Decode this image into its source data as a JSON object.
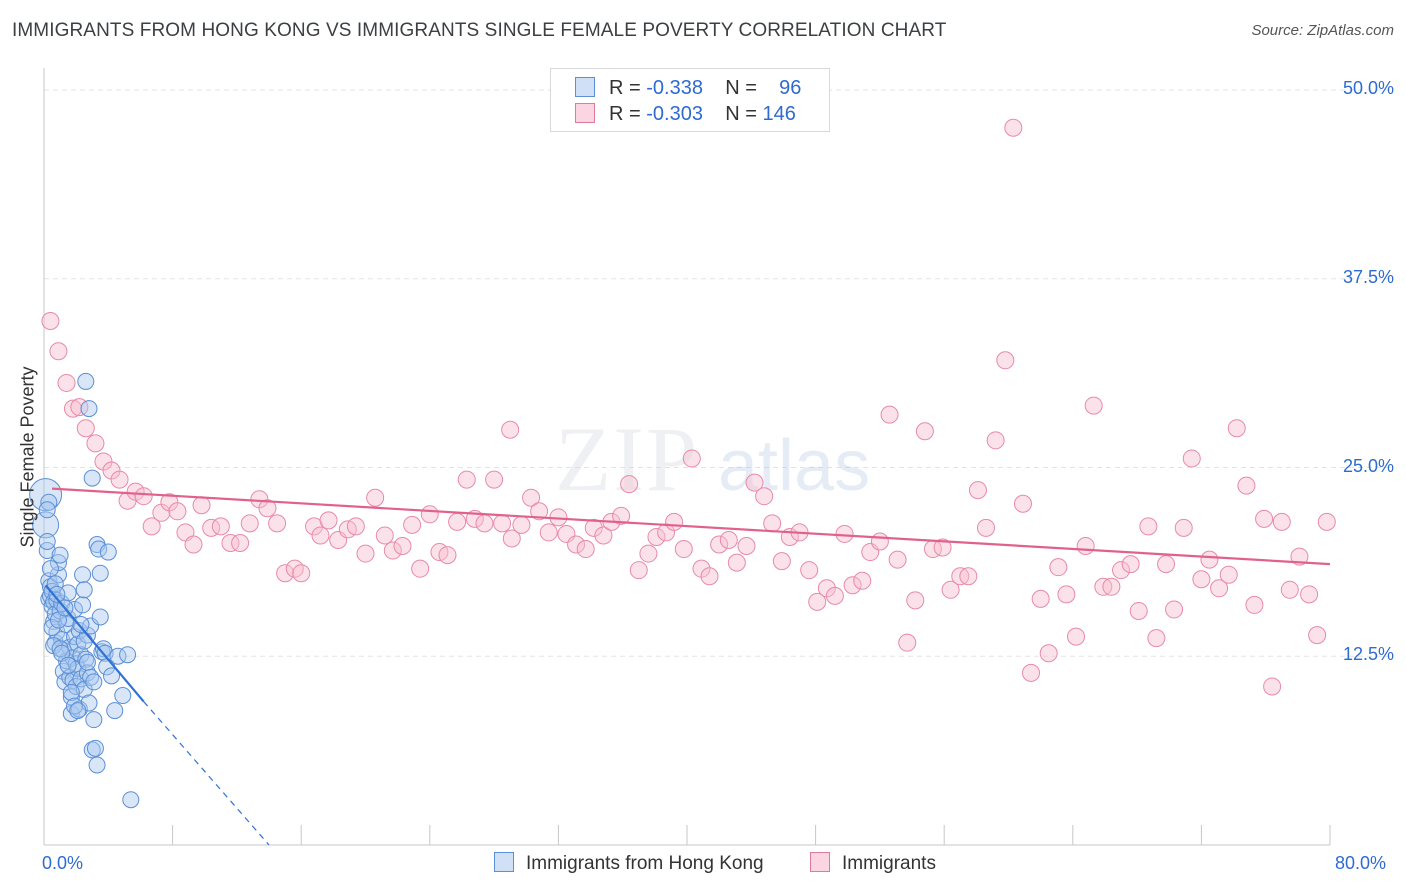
{
  "title": "IMMIGRANTS FROM HONG KONG VS IMMIGRANTS SINGLE FEMALE POVERTY CORRELATION CHART",
  "source": "Source: ZipAtlas.com",
  "watermark": {
    "zip": "ZIP",
    "atlas": "atlas"
  },
  "legend": {
    "rows": [
      {
        "r_label": "R =",
        "r_value": "-0.338",
        "n_label": "N =",
        "n_value": "96",
        "color": "#a8c8f0",
        "border": "#5b8fd6"
      },
      {
        "r_label": "R =",
        "r_value": "-0.303",
        "n_label": "N =",
        "n_value": "146",
        "color": "#f7bfd0",
        "border": "#e07a9a"
      }
    ]
  },
  "bottom_legend": [
    {
      "label": "Immigrants from Hong Kong",
      "color": "#a8c8f0",
      "border": "#5b8fd6"
    },
    {
      "label": "Immigrants",
      "color": "#f7bfd0",
      "border": "#e07a9a"
    }
  ],
  "chart_data": {
    "type": "scatter",
    "title": "IMMIGRANTS FROM HONG KONG VS IMMIGRANTS SINGLE FEMALE POVERTY CORRELATION CHART",
    "xlabel": "",
    "ylabel": "Single Female Poverty",
    "xlim": [
      0,
      80
    ],
    "ylim": [
      0,
      50
    ],
    "x_tick_labels": [
      "0.0%",
      "80.0%"
    ],
    "y_ticks": [
      12.5,
      25.0,
      37.5,
      50.0
    ],
    "y_tick_labels": [
      "12.5%",
      "25.0%",
      "37.5%",
      "50.0%"
    ],
    "grid": "horizontal dashed",
    "colors": {
      "hong_kong": "#4a87d8",
      "immigrants": "#e8739a"
    },
    "series": [
      {
        "name": "Immigrants from Hong Kong",
        "color": "#a8c8f0",
        "trend": {
          "x0": 0.1,
          "y0": 17.2,
          "x1": 6.2,
          "y1": 9.5,
          "dashed_to_x": 14,
          "dashed_to_y": 0
        },
        "points": [
          [
            0.1,
            23.2
          ],
          [
            0.1,
            21.2
          ],
          [
            0.2,
            19.5
          ],
          [
            0.3,
            17.5
          ],
          [
            0.3,
            16.3
          ],
          [
            0.4,
            16.5
          ],
          [
            0.4,
            17.1
          ],
          [
            0.5,
            16.8
          ],
          [
            0.5,
            15.8
          ],
          [
            0.6,
            16.1
          ],
          [
            0.6,
            14.8
          ],
          [
            0.7,
            13.4
          ],
          [
            0.7,
            15.3
          ],
          [
            0.8,
            14.1
          ],
          [
            0.8,
            16.2
          ],
          [
            0.9,
            17.9
          ],
          [
            0.9,
            18.7
          ],
          [
            1.0,
            19.2
          ],
          [
            1.0,
            15.5
          ],
          [
            1.1,
            16.0
          ],
          [
            1.1,
            13.6
          ],
          [
            1.2,
            12.9
          ],
          [
            1.2,
            11.5
          ],
          [
            1.3,
            10.8
          ],
          [
            1.4,
            12.2
          ],
          [
            1.4,
            14.6
          ],
          [
            1.5,
            15.0
          ],
          [
            1.5,
            16.7
          ],
          [
            1.6,
            13.1
          ],
          [
            1.6,
            11.1
          ],
          [
            1.7,
            9.8
          ],
          [
            1.7,
            8.7
          ],
          [
            1.8,
            12.4
          ],
          [
            1.8,
            10.9
          ],
          [
            1.9,
            13.8
          ],
          [
            1.9,
            15.6
          ],
          [
            2.0,
            12.0
          ],
          [
            2.0,
            10.5
          ],
          [
            2.1,
            11.7
          ],
          [
            2.1,
            13.3
          ],
          [
            2.2,
            9.0
          ],
          [
            2.2,
            14.2
          ],
          [
            2.3,
            12.6
          ],
          [
            2.3,
            11.0
          ],
          [
            2.4,
            17.9
          ],
          [
            2.4,
            15.9
          ],
          [
            2.5,
            16.9
          ],
          [
            2.5,
            10.3
          ],
          [
            2.6,
            30.7
          ],
          [
            2.6,
            12.3
          ],
          [
            2.7,
            11.4
          ],
          [
            2.7,
            13.9
          ],
          [
            2.8,
            28.9
          ],
          [
            2.8,
            9.4
          ],
          [
            2.9,
            11.1
          ],
          [
            2.9,
            14.5
          ],
          [
            3.0,
            24.3
          ],
          [
            3.0,
            6.3
          ],
          [
            3.1,
            10.8
          ],
          [
            3.1,
            8.3
          ],
          [
            3.2,
            6.4
          ],
          [
            3.3,
            5.3
          ],
          [
            3.3,
            19.9
          ],
          [
            3.4,
            19.6
          ],
          [
            3.5,
            18.0
          ],
          [
            3.5,
            15.1
          ],
          [
            3.6,
            12.8
          ],
          [
            3.7,
            13.0
          ],
          [
            3.8,
            12.7
          ],
          [
            3.9,
            11.8
          ],
          [
            4.0,
            19.4
          ],
          [
            4.2,
            11.2
          ],
          [
            4.4,
            8.9
          ],
          [
            4.6,
            12.5
          ],
          [
            4.9,
            9.9
          ],
          [
            5.2,
            12.6
          ],
          [
            5.4,
            3.0
          ],
          [
            0.3,
            22.7
          ],
          [
            0.2,
            20.1
          ],
          [
            0.4,
            18.3
          ],
          [
            0.5,
            14.4
          ],
          [
            0.6,
            13.2
          ],
          [
            0.7,
            17.3
          ],
          [
            0.8,
            16.6
          ],
          [
            0.9,
            14.9
          ],
          [
            1.0,
            13.0
          ],
          [
            1.1,
            12.7
          ],
          [
            1.3,
            15.7
          ],
          [
            1.5,
            11.9
          ],
          [
            1.7,
            10.1
          ],
          [
            1.9,
            9.2
          ],
          [
            2.1,
            8.9
          ],
          [
            2.3,
            14.6
          ],
          [
            2.5,
            13.5
          ],
          [
            2.7,
            12.1
          ],
          [
            0.2,
            22.2
          ]
        ],
        "sizes": [
          22,
          18
        ]
      },
      {
        "name": "Immigrants",
        "color": "#f7bfd0",
        "trend": {
          "x0": 0.5,
          "y0": 23.6,
          "x1": 80,
          "y1": 18.6
        },
        "points": [
          [
            0.4,
            34.7
          ],
          [
            0.9,
            32.7
          ],
          [
            1.4,
            30.6
          ],
          [
            1.8,
            28.9
          ],
          [
            2.2,
            29.0
          ],
          [
            2.6,
            27.6
          ],
          [
            3.2,
            26.6
          ],
          [
            3.7,
            25.4
          ],
          [
            4.2,
            24.8
          ],
          [
            4.7,
            24.2
          ],
          [
            5.2,
            22.8
          ],
          [
            5.7,
            23.4
          ],
          [
            6.2,
            23.1
          ],
          [
            6.7,
            21.1
          ],
          [
            7.3,
            22.0
          ],
          [
            7.8,
            22.7
          ],
          [
            8.3,
            22.1
          ],
          [
            8.8,
            20.7
          ],
          [
            9.3,
            19.9
          ],
          [
            9.8,
            22.5
          ],
          [
            10.4,
            21.0
          ],
          [
            11.0,
            21.1
          ],
          [
            11.6,
            20.0
          ],
          [
            12.2,
            20.0
          ],
          [
            12.8,
            21.3
          ],
          [
            13.4,
            22.9
          ],
          [
            13.9,
            22.3
          ],
          [
            14.5,
            21.3
          ],
          [
            15.0,
            18.0
          ],
          [
            15.6,
            18.3
          ],
          [
            16.0,
            18.0
          ],
          [
            16.8,
            21.1
          ],
          [
            17.2,
            20.5
          ],
          [
            17.7,
            21.5
          ],
          [
            18.3,
            20.2
          ],
          [
            18.9,
            20.9
          ],
          [
            19.4,
            21.1
          ],
          [
            20.0,
            19.3
          ],
          [
            20.6,
            23.0
          ],
          [
            21.2,
            20.5
          ],
          [
            21.7,
            19.5
          ],
          [
            22.3,
            19.8
          ],
          [
            22.9,
            21.2
          ],
          [
            23.4,
            18.3
          ],
          [
            24.0,
            21.9
          ],
          [
            24.6,
            19.4
          ],
          [
            25.1,
            19.2
          ],
          [
            25.7,
            21.4
          ],
          [
            26.3,
            24.2
          ],
          [
            26.8,
            21.6
          ],
          [
            27.4,
            21.3
          ],
          [
            28.0,
            24.2
          ],
          [
            28.5,
            21.3
          ],
          [
            29.0,
            27.5
          ],
          [
            29.1,
            20.3
          ],
          [
            29.7,
            21.2
          ],
          [
            30.3,
            23.0
          ],
          [
            30.8,
            22.1
          ],
          [
            31.4,
            20.7
          ],
          [
            32.0,
            21.7
          ],
          [
            32.5,
            20.6
          ],
          [
            33.1,
            19.9
          ],
          [
            33.7,
            19.6
          ],
          [
            34.2,
            21.0
          ],
          [
            34.8,
            20.5
          ],
          [
            35.3,
            21.4
          ],
          [
            35.9,
            21.8
          ],
          [
            36.4,
            23.9
          ],
          [
            37.0,
            18.2
          ],
          [
            37.6,
            19.3
          ],
          [
            38.1,
            20.4
          ],
          [
            38.7,
            20.7
          ],
          [
            39.2,
            21.4
          ],
          [
            39.8,
            19.6
          ],
          [
            40.3,
            25.6
          ],
          [
            40.9,
            18.3
          ],
          [
            41.4,
            17.8
          ],
          [
            42.0,
            19.9
          ],
          [
            42.6,
            20.2
          ],
          [
            43.1,
            18.7
          ],
          [
            43.7,
            19.8
          ],
          [
            44.2,
            24.0
          ],
          [
            44.8,
            23.1
          ],
          [
            45.3,
            21.3
          ],
          [
            45.9,
            18.8
          ],
          [
            46.4,
            20.4
          ],
          [
            47.0,
            20.7
          ],
          [
            47.6,
            18.2
          ],
          [
            48.1,
            16.1
          ],
          [
            48.7,
            17.0
          ],
          [
            49.2,
            16.5
          ],
          [
            49.8,
            20.6
          ],
          [
            50.3,
            17.2
          ],
          [
            50.9,
            17.5
          ],
          [
            51.4,
            19.4
          ],
          [
            52.0,
            20.1
          ],
          [
            52.6,
            28.5
          ],
          [
            53.1,
            18.9
          ],
          [
            53.7,
            13.4
          ],
          [
            54.2,
            16.2
          ],
          [
            54.8,
            27.4
          ],
          [
            55.3,
            19.6
          ],
          [
            55.9,
            19.7
          ],
          [
            56.4,
            16.9
          ],
          [
            57.0,
            17.8
          ],
          [
            57.5,
            17.8
          ],
          [
            58.1,
            23.5
          ],
          [
            58.6,
            21.0
          ],
          [
            59.2,
            26.8
          ],
          [
            59.8,
            32.1
          ],
          [
            60.3,
            47.5
          ],
          [
            60.9,
            22.6
          ],
          [
            61.4,
            11.4
          ],
          [
            62.0,
            16.3
          ],
          [
            62.5,
            12.7
          ],
          [
            63.1,
            18.4
          ],
          [
            63.6,
            16.6
          ],
          [
            64.2,
            13.8
          ],
          [
            64.8,
            19.8
          ],
          [
            65.3,
            29.1
          ],
          [
            65.9,
            17.1
          ],
          [
            66.4,
            17.1
          ],
          [
            67.0,
            18.2
          ],
          [
            67.6,
            18.6
          ],
          [
            68.1,
            15.5
          ],
          [
            68.7,
            21.1
          ],
          [
            69.2,
            13.7
          ],
          [
            69.8,
            18.6
          ],
          [
            70.3,
            15.6
          ],
          [
            70.9,
            21.0
          ],
          [
            71.4,
            25.6
          ],
          [
            72.0,
            17.6
          ],
          [
            72.5,
            18.9
          ],
          [
            73.1,
            17.0
          ],
          [
            73.7,
            17.9
          ],
          [
            74.2,
            27.6
          ],
          [
            74.8,
            23.8
          ],
          [
            75.3,
            15.9
          ],
          [
            75.9,
            21.6
          ],
          [
            76.4,
            10.5
          ],
          [
            77.0,
            21.4
          ],
          [
            77.5,
            16.9
          ],
          [
            78.1,
            19.1
          ],
          [
            78.7,
            16.6
          ],
          [
            79.2,
            13.9
          ],
          [
            79.8,
            21.4
          ]
        ]
      }
    ]
  }
}
